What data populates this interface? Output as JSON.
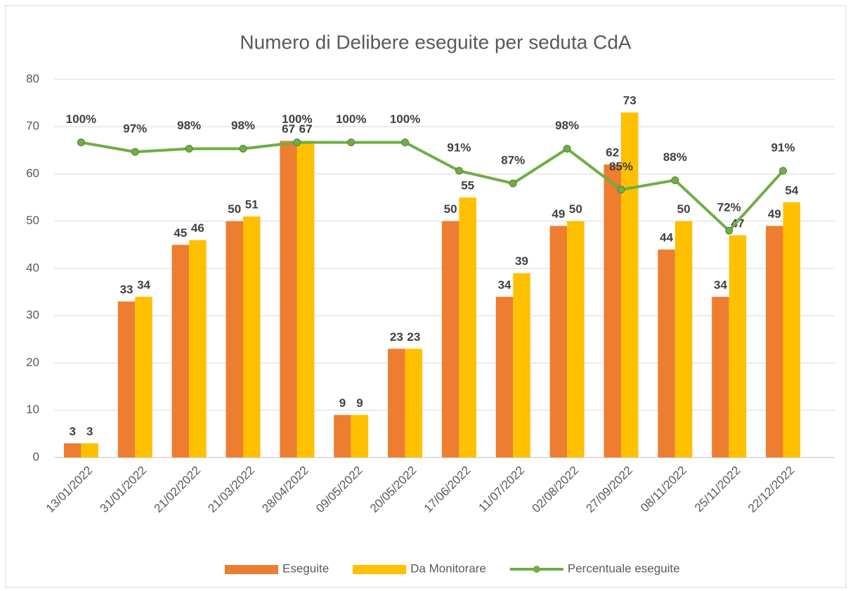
{
  "chart_data": {
    "type": "bar_line",
    "title": "Numero di Delibere eseguite per seduta CdA",
    "categories": [
      "13/01/2022",
      "31/01/2022",
      "21/02/2022",
      "21/03/2022",
      "28/04/2022",
      "09/05/2022",
      "20/05/2022",
      "17/06/2022",
      "11/07/2022",
      "02/08/2022",
      "27/09/2022",
      "08/11/2022",
      "25/11/2022",
      "22/12/2022"
    ],
    "series": [
      {
        "name": "Eseguite",
        "type": "bar",
        "color": "#ed7d31",
        "values": [
          3,
          33,
          45,
          50,
          67,
          9,
          23,
          50,
          34,
          49,
          62,
          44,
          34,
          49
        ]
      },
      {
        "name": "Da Monitorare",
        "type": "bar",
        "color": "#ffc000",
        "values": [
          3,
          34,
          46,
          51,
          67,
          9,
          23,
          55,
          39,
          50,
          73,
          50,
          47,
          54
        ]
      },
      {
        "name": "Percentuale eseguite",
        "type": "line",
        "axis": "y2",
        "color": "#70ad47",
        "values": [
          100,
          97,
          98,
          98,
          100,
          100,
          100,
          91,
          87,
          98,
          85,
          88,
          72,
          91
        ],
        "value_labels": [
          "100%",
          "97%",
          "98%",
          "98%",
          "100%",
          "100%",
          "100%",
          "91%",
          "87%",
          "98%",
          "85%",
          "88%",
          "72%",
          "91%"
        ]
      }
    ],
    "ylim": [
      0,
      80
    ],
    "yticks": [
      0,
      10,
      20,
      30,
      40,
      50,
      60,
      70,
      80
    ],
    "y2lim": [
      0,
      120
    ],
    "grid": true,
    "legend": "bottom"
  }
}
